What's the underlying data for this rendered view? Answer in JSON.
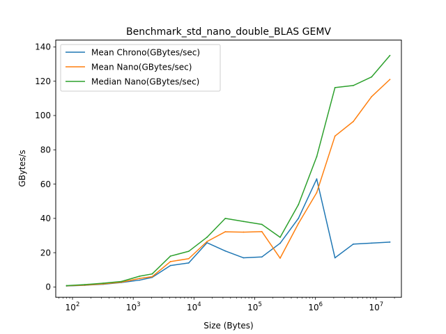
{
  "chart_data": {
    "type": "line",
    "title": "Benchmark_std_nano_double_BLAS GEMV",
    "xlabel": "Size (Bytes)",
    "ylabel": "GBytes/s",
    "xscale": "log",
    "xlim": [
      53,
      26000000
    ],
    "ylim": [
      -6,
      144
    ],
    "yticks": [
      0,
      20,
      40,
      60,
      80,
      100,
      120,
      140
    ],
    "xticks": [
      {
        "value": 100,
        "base": "10",
        "exp": "2"
      },
      {
        "value": 1000,
        "base": "10",
        "exp": "3"
      },
      {
        "value": 10000,
        "base": "10",
        "exp": "4"
      },
      {
        "value": 100000,
        "base": "10",
        "exp": "5"
      },
      {
        "value": 1000000,
        "base": "10",
        "exp": "6"
      },
      {
        "value": 10000000,
        "base": "10",
        "exp": "7"
      }
    ],
    "x": [
      80,
      160,
      320,
      640,
      1280,
      2048,
      4096,
      8192,
      16384,
      32768,
      65536,
      131072,
      262144,
      524288,
      1048576,
      2097152,
      4194304,
      8388608,
      16777216
    ],
    "series": [
      {
        "name": "Mean Chrono(GBytes/sec)",
        "color": "#1f77b4",
        "values": [
          0.6,
          1.0,
          1.6,
          2.6,
          4.0,
          5.6,
          12.5,
          14.0,
          25.8,
          21.0,
          17.0,
          17.5,
          25.5,
          40.0,
          63.0,
          17.0,
          25.0,
          25.6,
          26.2
        ]
      },
      {
        "name": "Mean Nano(GBytes/sec)",
        "color": "#ff7f0e",
        "values": [
          0.7,
          1.1,
          1.8,
          2.8,
          5.0,
          6.0,
          14.8,
          16.5,
          26.5,
          32.2,
          32.0,
          32.3,
          16.8,
          37.0,
          55.0,
          88.0,
          96.5,
          111.0,
          121.0
        ]
      },
      {
        "name": "Median Nano(GBytes/sec)",
        "color": "#2ca02c",
        "values": [
          0.8,
          1.4,
          2.2,
          3.2,
          6.3,
          7.6,
          18.0,
          20.8,
          29.0,
          40.0,
          38.2,
          36.5,
          29.0,
          48.0,
          76.0,
          116.3,
          117.5,
          122.5,
          135.0
        ]
      }
    ],
    "legend": "upper-left",
    "grid": false
  }
}
